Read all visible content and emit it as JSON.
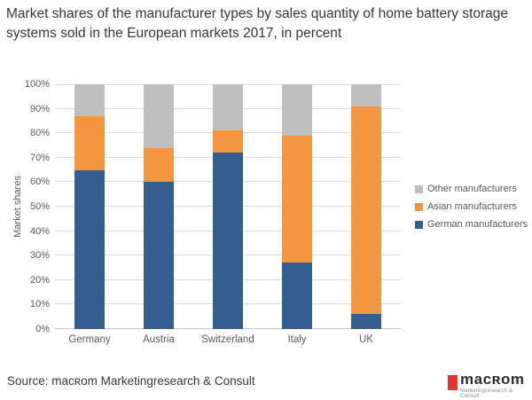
{
  "title": "Market shares of the manufacturer types by sales quantity of home battery storage systems sold in the European markets 2017, in percent",
  "source": "Source: macʀom Marketingresearch & Consult",
  "logo": {
    "name": "macʀom",
    "tagline": "Marketingresearch & Consult",
    "accent_color": "#e3342e"
  },
  "colors": {
    "german": "#335e8d",
    "asian": "#f29640",
    "other": "#bfbfbf"
  },
  "chart_data": {
    "type": "bar",
    "stacked": true,
    "title": "Market shares of the manufacturer types by sales quantity of home battery storage systems sold in the European markets 2017, in percent",
    "categories": [
      "Germany",
      "Austria",
      "Switzerland",
      "Italy",
      "UK"
    ],
    "series": [
      {
        "name": "German manufacturers",
        "color_key": "german",
        "values": [
          65,
          60,
          72,
          27,
          6
        ]
      },
      {
        "name": "Asian manufacturers",
        "color_key": "asian",
        "values": [
          22,
          14,
          9,
          52,
          85
        ]
      },
      {
        "name": "Other manufacturers",
        "color_key": "other",
        "values": [
          13,
          26,
          19,
          21,
          9
        ]
      }
    ],
    "xlabel": "",
    "ylabel": "Market shares",
    "ylim": [
      0,
      100
    ],
    "ytick_step": 10,
    "ytick_suffix": "%",
    "grid": true,
    "legend_position": "right",
    "legend_order": [
      "Other manufacturers",
      "Asian manufacturers",
      "German manufacturers"
    ]
  }
}
